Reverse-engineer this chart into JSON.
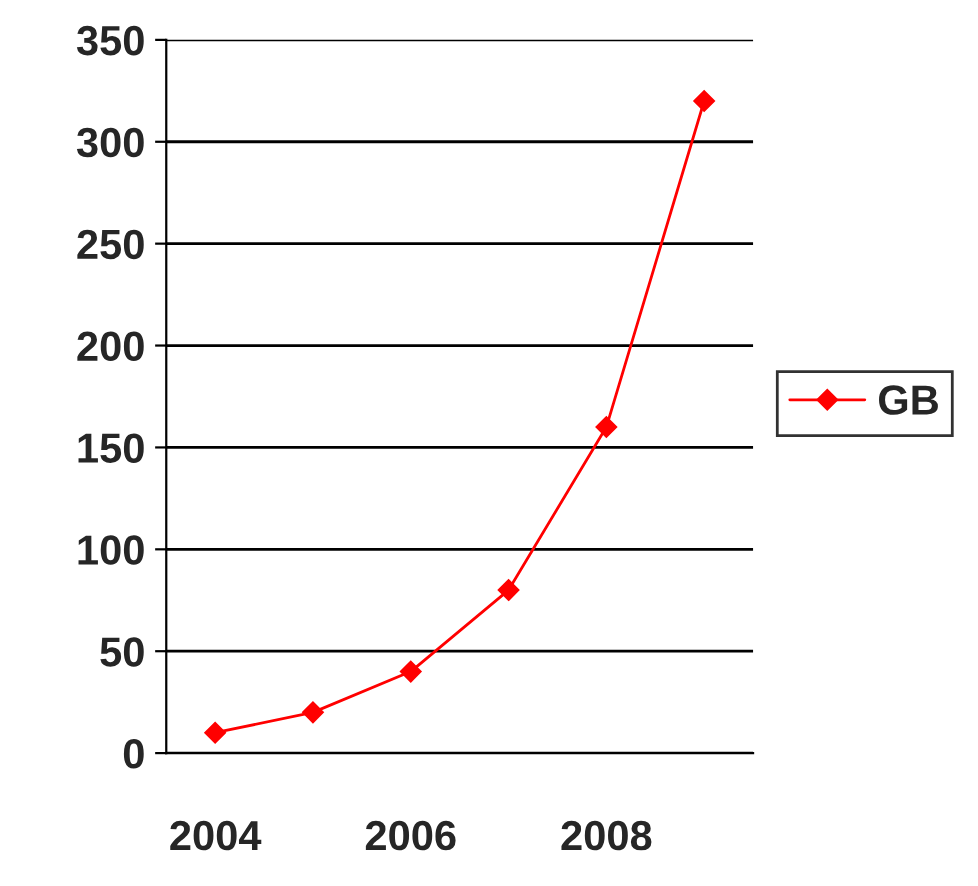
{
  "chart_data": {
    "type": "line",
    "categories": [
      "2004",
      null,
      "2006",
      null,
      "2008",
      null
    ],
    "series": [
      {
        "name": "GB",
        "color": "#ff0000",
        "values": [
          10,
          20,
          40,
          80,
          160,
          320
        ]
      }
    ],
    "ylim": [
      0,
      350
    ],
    "yticks": [
      0,
      50,
      100,
      150,
      200,
      250,
      300,
      350
    ],
    "grid": "y",
    "legend": "right",
    "marker": "diamond",
    "line_style": "solid"
  }
}
